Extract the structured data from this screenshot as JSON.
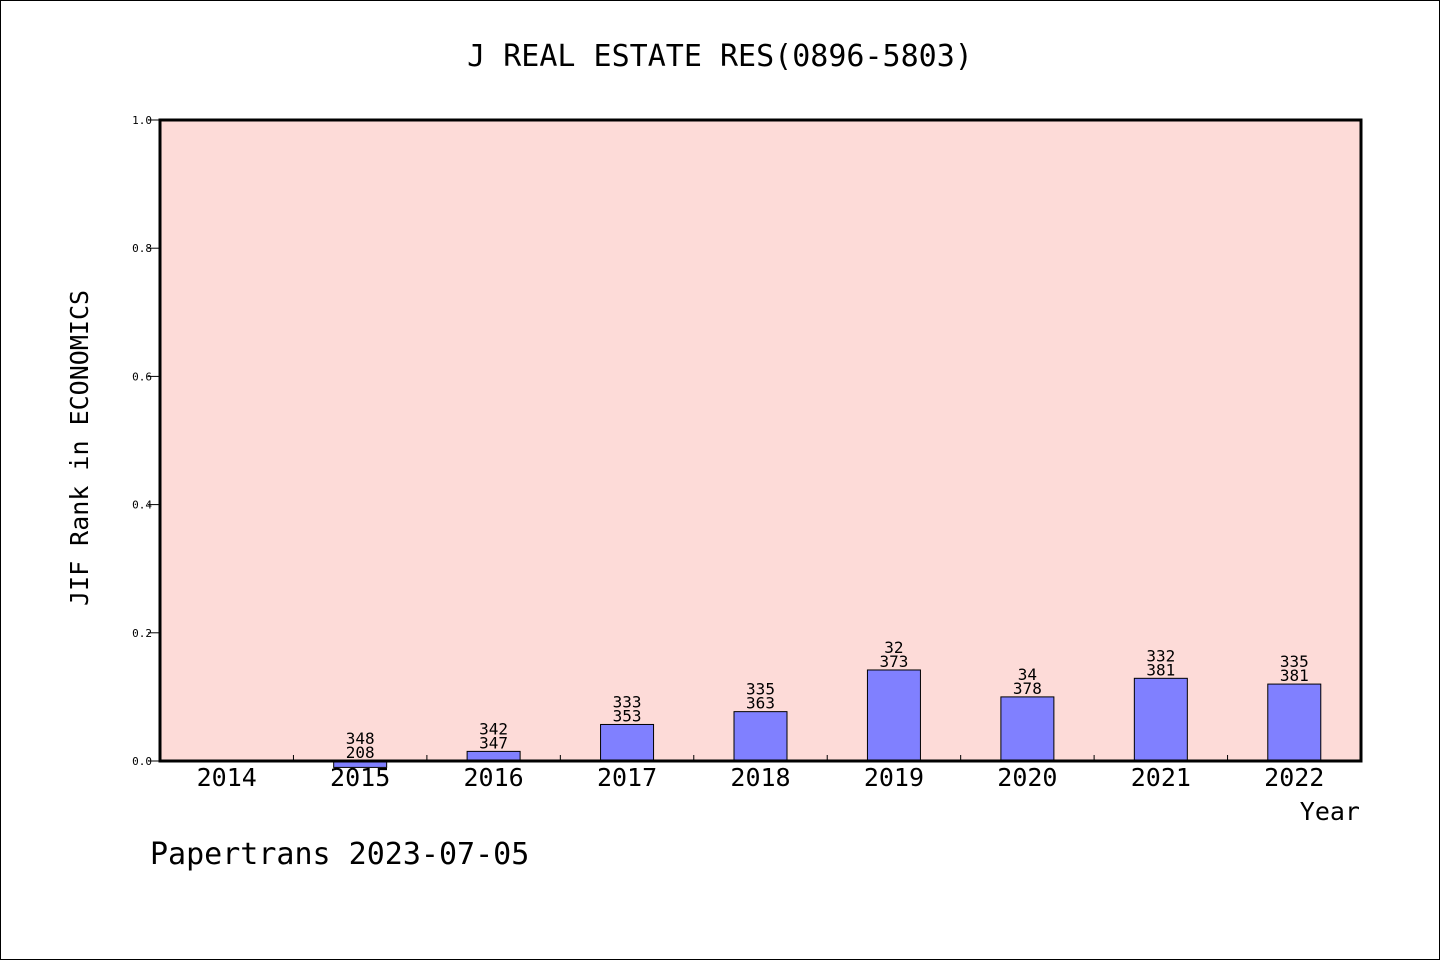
{
  "chart_data": {
    "type": "bar",
    "title": "J REAL ESTATE RES(0896-5803)",
    "xlabel": "Year",
    "ylabel": "JIF Rank in ECONOMICS",
    "ylim": [
      0,
      1.0
    ],
    "yticks": [
      "0.0",
      "0.2",
      "0.4",
      "0.6",
      "0.8",
      "1.0"
    ],
    "categories": [
      "2014",
      "2015",
      "2016",
      "2017",
      "2018",
      "2019",
      "2020",
      "2021",
      "2022"
    ],
    "bars": [
      {
        "year": "2014",
        "value": null,
        "rank": "",
        "total": ""
      },
      {
        "year": "2015",
        "value": -0.01,
        "rank": "348",
        "total": "208"
      },
      {
        "year": "2016",
        "value": 0.015,
        "rank": "342",
        "total": "347"
      },
      {
        "year": "2017",
        "value": 0.057,
        "rank": "333",
        "total": "353"
      },
      {
        "year": "2018",
        "value": 0.077,
        "rank": "335",
        "total": "363"
      },
      {
        "year": "2019",
        "value": 0.142,
        "rank": "32",
        "total": "373"
      },
      {
        "year": "2020",
        "value": 0.1,
        "rank": "34",
        "total": "378"
      },
      {
        "year": "2021",
        "value": 0.129,
        "rank": "332",
        "total": "381"
      },
      {
        "year": "2022",
        "value": 0.12,
        "rank": "335",
        "total": "381"
      }
    ],
    "grid": false,
    "colors": {
      "plot_background": "#fddbd8",
      "bar_fill": "#8080ff",
      "bar_stroke": "#000000"
    }
  },
  "footer": "Papertrans 2023-07-05"
}
